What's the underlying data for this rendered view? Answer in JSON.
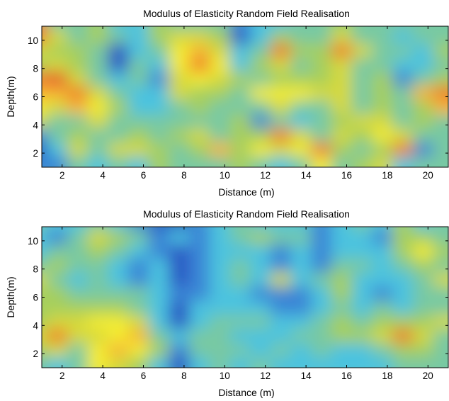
{
  "colormap": {
    "name": "parula-like contour levels",
    "levels": [
      "#1b2e9a",
      "#2a58c4",
      "#3a86d6",
      "#4cc3df",
      "#78c9a3",
      "#a6cf5d",
      "#d6d93a",
      "#f4ec31",
      "#f6b634",
      "#f07d2c",
      "#e54d2b"
    ]
  },
  "chart_data": [
    {
      "type": "heatmap",
      "style": "filled contour",
      "title": "Modulus of Elasticity Random Field Realisation",
      "xlabel": "Distance (m)",
      "ylabel": "Depth(m)",
      "xlim": [
        1,
        21
      ],
      "ylim": [
        1,
        11
      ],
      "xticks": [
        2,
        4,
        6,
        8,
        10,
        12,
        14,
        16,
        18,
        20
      ],
      "yticks": [
        2,
        4,
        6,
        8,
        10
      ],
      "grid": false,
      "x": [
        1,
        2,
        3,
        4,
        5,
        6,
        7,
        8,
        9,
        10,
        11,
        12,
        13,
        14,
        15,
        16,
        17,
        18,
        19,
        20,
        21
      ],
      "y": [
        1,
        2,
        3,
        4,
        5,
        6,
        7,
        8,
        9,
        10,
        11
      ],
      "z_levels": [
        [
          9,
          4,
          4,
          5,
          3,
          3,
          5,
          4,
          4,
          4,
          2,
          3,
          3,
          4,
          4,
          5,
          4,
          4,
          4,
          4,
          4
        ],
        [
          9,
          6,
          4,
          5,
          4,
          3,
          5,
          6,
          6,
          5,
          1,
          3,
          5,
          4,
          4,
          6,
          4,
          4,
          3,
          4,
          4
        ],
        [
          6,
          5,
          5,
          4,
          1,
          3,
          4,
          7,
          8,
          6,
          3,
          4,
          9,
          5,
          5,
          9,
          6,
          4,
          4,
          3,
          5
        ],
        [
          5,
          6,
          5,
          4,
          1,
          4,
          3,
          7,
          9,
          7,
          3,
          5,
          6,
          4,
          5,
          6,
          4,
          4,
          3,
          3,
          4
        ],
        [
          9,
          10,
          6,
          4,
          3,
          4,
          2,
          6,
          7,
          6,
          5,
          4,
          5,
          5,
          5,
          6,
          4,
          5,
          2,
          4,
          5
        ],
        [
          8,
          8,
          9,
          6,
          4,
          3,
          3,
          6,
          5,
          5,
          4,
          7,
          7,
          7,
          6,
          6,
          4,
          5,
          4,
          8,
          9
        ],
        [
          7,
          6,
          8,
          7,
          5,
          3,
          3,
          4,
          5,
          4,
          4,
          4,
          6,
          4,
          4,
          6,
          4,
          5,
          4,
          5,
          8
        ],
        [
          6,
          4,
          4,
          6,
          4,
          4,
          4,
          4,
          4,
          4,
          5,
          2,
          4,
          3,
          4,
          5,
          6,
          6,
          4,
          5,
          4
        ],
        [
          2,
          4,
          5,
          4,
          4,
          5,
          4,
          5,
          6,
          4,
          5,
          5,
          9,
          6,
          4,
          6,
          5,
          7,
          6,
          4,
          4
        ],
        [
          1,
          3,
          6,
          4,
          6,
          6,
          5,
          4,
          5,
          8,
          5,
          7,
          6,
          7,
          9,
          5,
          4,
          5,
          9,
          2,
          4
        ],
        [
          2,
          2,
          4,
          3,
          4,
          3,
          5,
          4,
          4,
          4,
          5,
          4,
          3,
          4,
          7,
          4,
          5,
          6,
          3,
          4,
          4
        ]
      ]
    },
    {
      "type": "heatmap",
      "style": "filled contour",
      "title": "Modulus of Elasticity Random Field Realisation",
      "xlabel": "Distance (m)",
      "ylabel": "Depth(m)",
      "xlim": [
        1,
        21
      ],
      "ylim": [
        1,
        11
      ],
      "xticks": [
        2,
        4,
        6,
        8,
        10,
        12,
        14,
        16,
        18,
        20
      ],
      "yticks": [
        2,
        4,
        6,
        8,
        10
      ],
      "grid": false,
      "x": [
        1,
        2,
        3,
        4,
        5,
        6,
        7,
        8,
        9,
        10,
        11,
        12,
        13,
        14,
        15,
        16,
        17,
        18,
        19,
        20,
        21
      ],
      "y": [
        1,
        2,
        3,
        4,
        5,
        6,
        7,
        8,
        9,
        10,
        11
      ],
      "z_levels": [
        [
          4,
          3,
          3,
          4,
          3,
          2,
          1,
          1,
          2,
          3,
          4,
          3,
          3,
          3,
          2,
          3,
          4,
          3,
          5,
          3,
          4
        ],
        [
          3,
          2,
          4,
          6,
          5,
          4,
          2,
          3,
          2,
          3,
          4,
          5,
          4,
          4,
          2,
          3,
          3,
          2,
          5,
          5,
          4
        ],
        [
          3,
          4,
          4,
          5,
          4,
          3,
          2,
          1,
          2,
          3,
          3,
          3,
          2,
          3,
          2,
          3,
          3,
          3,
          5,
          7,
          5
        ],
        [
          4,
          5,
          4,
          4,
          3,
          2,
          3,
          1,
          2,
          3,
          4,
          3,
          2,
          3,
          2,
          4,
          4,
          3,
          4,
          5,
          4
        ],
        [
          6,
          4,
          3,
          4,
          3,
          2,
          3,
          1,
          2,
          3,
          4,
          3,
          6,
          3,
          4,
          5,
          3,
          3,
          3,
          4,
          6
        ],
        [
          5,
          5,
          4,
          4,
          4,
          4,
          3,
          2,
          2,
          3,
          3,
          2,
          2,
          2,
          3,
          5,
          3,
          2,
          3,
          4,
          4
        ],
        [
          5,
          5,
          5,
          5,
          5,
          4,
          3,
          1,
          3,
          3,
          3,
          3,
          2,
          2,
          3,
          4,
          3,
          4,
          3,
          4,
          4
        ],
        [
          5,
          6,
          6,
          7,
          7,
          6,
          3,
          1,
          3,
          4,
          4,
          4,
          3,
          3,
          4,
          5,
          4,
          5,
          5,
          5,
          6
        ],
        [
          6,
          9,
          6,
          6,
          7,
          8,
          4,
          3,
          4,
          4,
          3,
          3,
          3,
          4,
          4,
          5,
          5,
          6,
          9,
          6,
          4
        ],
        [
          5,
          6,
          4,
          7,
          8,
          7,
          5,
          2,
          4,
          4,
          4,
          3,
          4,
          3,
          4,
          3,
          3,
          4,
          5,
          5,
          4
        ],
        [
          4,
          3,
          4,
          7,
          6,
          5,
          3,
          1,
          3,
          4,
          3,
          4,
          3,
          3,
          3,
          3,
          3,
          3,
          4,
          4,
          4
        ]
      ]
    }
  ]
}
